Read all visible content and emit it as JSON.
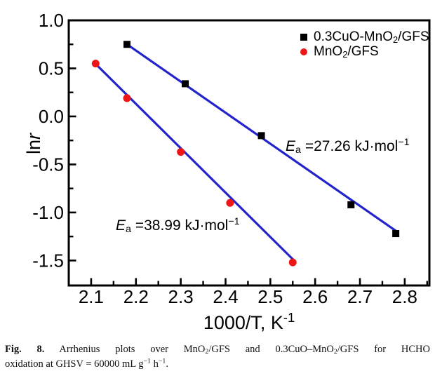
{
  "figure": {
    "caption": {
      "lines": [
        {
          "parts": [
            {
              "t": "Fig. 8.",
              "b": true
            },
            {
              "t": " Arrhenius plots over MnO"
            },
            {
              "t": "2",
              "sub": true
            },
            {
              "t": "/GFS and 0.3CuO–MnO"
            },
            {
              "t": "2",
              "sub": true
            },
            {
              "t": "/GFS for HCHO"
            }
          ]
        },
        {
          "parts": [
            {
              "t": "oxidation at GHSV = 60000 mL g"
            },
            {
              "t": "−1",
              "sup": true
            },
            {
              "t": " h"
            },
            {
              "t": "−1",
              "sup": true
            },
            {
              "t": "."
            }
          ]
        }
      ]
    }
  },
  "chart_data": {
    "type": "scatter",
    "title": "",
    "xlabel": "1000/T, K^-1",
    "xlabel_parts": [
      {
        "t": "1000/T, K"
      },
      {
        "t": "-1",
        "sup": true
      }
    ],
    "ylabel": "ln r",
    "ylabel_parts": [
      {
        "t": "ln "
      },
      {
        "t": "r",
        "i": true
      }
    ],
    "xlim": [
      2.05,
      2.855
    ],
    "ylim": [
      -1.76,
      1.0
    ],
    "grid": false,
    "legend_position": "top-right-inside",
    "axis_color": "#000000",
    "fit_line_color": "#2323cc",
    "x_major_ticks": [
      {
        "v": 2.1,
        "label": "2.1"
      },
      {
        "v": 2.2,
        "label": "2.2"
      },
      {
        "v": 2.3,
        "label": "2.3"
      },
      {
        "v": 2.4,
        "label": "2.4"
      },
      {
        "v": 2.5,
        "label": "2.5"
      },
      {
        "v": 2.6,
        "label": "2.6"
      },
      {
        "v": 2.7,
        "label": "2.7"
      },
      {
        "v": 2.8,
        "label": "2.8"
      }
    ],
    "x_minor_ticks": [
      2.15,
      2.25,
      2.35,
      2.45,
      2.55,
      2.65,
      2.75,
      2.85
    ],
    "y_major_ticks": [
      {
        "v": 1.0,
        "label": "1.0"
      },
      {
        "v": 0.5,
        "label": "0.5"
      },
      {
        "v": 0.0,
        "label": "0.0"
      },
      {
        "v": -0.5,
        "label": "-0.5"
      },
      {
        "v": -1.0,
        "label": "-1.0"
      },
      {
        "v": -1.5,
        "label": "-1.5"
      }
    ],
    "y_minor_ticks": [
      0.75,
      0.25,
      -0.25,
      -0.75,
      -1.25
    ],
    "series": [
      {
        "name": "0.3CuO-MnO2/GFS",
        "label_parts": [
          {
            "t": "0.3CuO-MnO"
          },
          {
            "t": "2",
            "sub": true
          },
          {
            "t": "/GFS"
          }
        ],
        "marker": "square",
        "marker_color": "#000000",
        "points": [
          [
            2.18,
            0.75
          ],
          [
            2.31,
            0.34
          ],
          [
            2.48,
            -0.2
          ],
          [
            2.68,
            -0.92
          ],
          [
            2.78,
            -1.22
          ]
        ],
        "fit_line": [
          [
            2.177,
            0.76
          ],
          [
            2.786,
            -1.21
          ]
        ],
        "Ea_kJ_per_mol": 27.26
      },
      {
        "name": "MnO2/GFS",
        "label_parts": [
          {
            "t": "MnO"
          },
          {
            "t": "2",
            "sub": true
          },
          {
            "t": "/GFS"
          }
        ],
        "marker": "circle",
        "marker_color": "#ed1515",
        "points": [
          [
            2.11,
            0.55
          ],
          [
            2.18,
            0.19
          ],
          [
            2.3,
            -0.37
          ],
          [
            2.41,
            -0.9
          ],
          [
            2.55,
            -1.52
          ]
        ],
        "fit_line": [
          [
            2.107,
            0.56
          ],
          [
            2.553,
            -1.5
          ]
        ],
        "Ea_kJ_per_mol": 38.99
      }
    ],
    "annotations": [
      {
        "name": "ea-cuo-mno2",
        "x": 2.534,
        "y": -0.36,
        "parts": [
          {
            "t": "E",
            "i": true
          },
          {
            "t": "a",
            "sub": true
          },
          {
            "t": " =27.26 kJ·mol"
          },
          {
            "t": "−1",
            "sup": true
          }
        ]
      },
      {
        "name": "ea-mno2",
        "x": 2.155,
        "y": -1.182,
        "parts": [
          {
            "t": "E",
            "i": true
          },
          {
            "t": "a",
            "sub": true
          },
          {
            "t": " =38.99 kJ·mol"
          },
          {
            "t": "−1",
            "sup": true
          }
        ]
      }
    ]
  }
}
